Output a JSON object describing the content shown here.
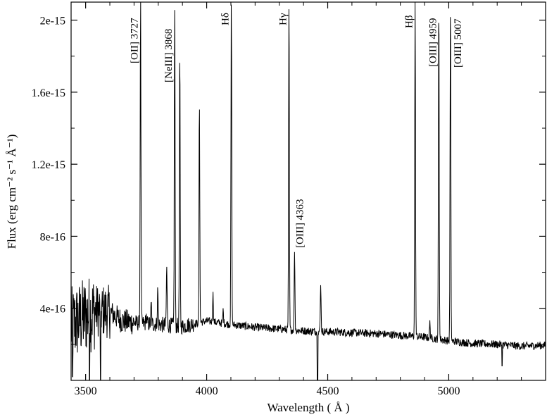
{
  "chart_data": {
    "type": "line",
    "xlabel": "Wavelength  ( Å )",
    "ylabel": "Flux (erg cm⁻² s⁻¹ Å⁻¹)",
    "xlim": [
      3440,
      5400
    ],
    "ylim": [
      0,
      2.1e-15
    ],
    "x_ticks": [
      {
        "value": 3500,
        "label": "3500"
      },
      {
        "value": 4000,
        "label": "4000"
      },
      {
        "value": 4500,
        "label": "4500"
      },
      {
        "value": 5000,
        "label": "5000"
      }
    ],
    "y_ticks": [
      {
        "value": 4e-16,
        "label": "4e-16"
      },
      {
        "value": 8e-16,
        "label": "8e-16"
      },
      {
        "value": 1.2e-15,
        "label": "1.2e-15"
      },
      {
        "value": 1.6e-15,
        "label": "1.6e-15"
      },
      {
        "value": 2e-15,
        "label": "2e-15"
      }
    ],
    "series": [
      {
        "continuum": [
          [
            3440,
            3e-16
          ],
          [
            3500,
            3.6e-16
          ],
          [
            3550,
            3.9e-16
          ],
          [
            3600,
            3.8e-16
          ],
          [
            3650,
            3.3e-16
          ],
          [
            3700,
            3.2e-16
          ],
          [
            3800,
            3.1e-16
          ],
          [
            3900,
            3e-16
          ],
          [
            4000,
            3.3e-16
          ],
          [
            4100,
            3.1e-16
          ],
          [
            4200,
            2.95e-16
          ],
          [
            4300,
            2.85e-16
          ],
          [
            4400,
            2.75e-16
          ],
          [
            4500,
            2.7e-16
          ],
          [
            4600,
            2.65e-16
          ],
          [
            4700,
            2.6e-16
          ],
          [
            4800,
            2.5e-16
          ],
          [
            4900,
            2.4e-16
          ],
          [
            5000,
            2.2e-16
          ],
          [
            5100,
            2.05e-16
          ],
          [
            5200,
            2e-16
          ],
          [
            5300,
            1.9e-16
          ],
          [
            5400,
            1.95e-16
          ]
        ],
        "emission_lines": [
          {
            "wavelength": 3727,
            "peak": 2.1e-15
          },
          {
            "wavelength": 3750,
            "peak": 3.6e-16
          },
          {
            "wavelength": 3771,
            "peak": 4.2e-16
          },
          {
            "wavelength": 3798,
            "peak": 5e-16
          },
          {
            "wavelength": 3835,
            "peak": 6.3e-16
          },
          {
            "wavelength": 3868,
            "peak": 2.1e-15
          },
          {
            "wavelength": 3889,
            "peak": 1.79e-15
          },
          {
            "wavelength": 3970,
            "peak": 1.55e-15
          },
          {
            "wavelength": 4026,
            "peak": 4.8e-16
          },
          {
            "wavelength": 4068,
            "peak": 3.9e-16
          },
          {
            "wavelength": 4102,
            "peak": 2.1e-15
          },
          {
            "wavelength": 4340,
            "peak": 2.1e-15
          },
          {
            "wavelength": 4363,
            "peak": 7.3e-16
          },
          {
            "wavelength": 4471,
            "peak": 5.4e-16
          },
          {
            "wavelength": 4861,
            "peak": 2.1e-15
          },
          {
            "wavelength": 4922,
            "peak": 3.2e-16
          },
          {
            "wavelength": 4959,
            "peak": 2.1e-15
          },
          {
            "wavelength": 5007,
            "peak": 2.1e-15
          }
        ]
      }
    ],
    "annotations": [
      {
        "text": "[OII] 3727",
        "x": 3727
      },
      {
        "text": "[NeIII] 3868",
        "x": 3868
      },
      {
        "text": "Hδ",
        "x": 4102
      },
      {
        "text": "Hγ",
        "x": 4340
      },
      {
        "text": "[OIII] 4363",
        "x": 4363
      },
      {
        "text": "Hβ",
        "x": 4861
      },
      {
        "text": "[OIII] 4959",
        "x": 4959
      },
      {
        "text": "[OIII] 5007",
        "x": 5007
      }
    ],
    "grid": false,
    "legend": "none"
  }
}
